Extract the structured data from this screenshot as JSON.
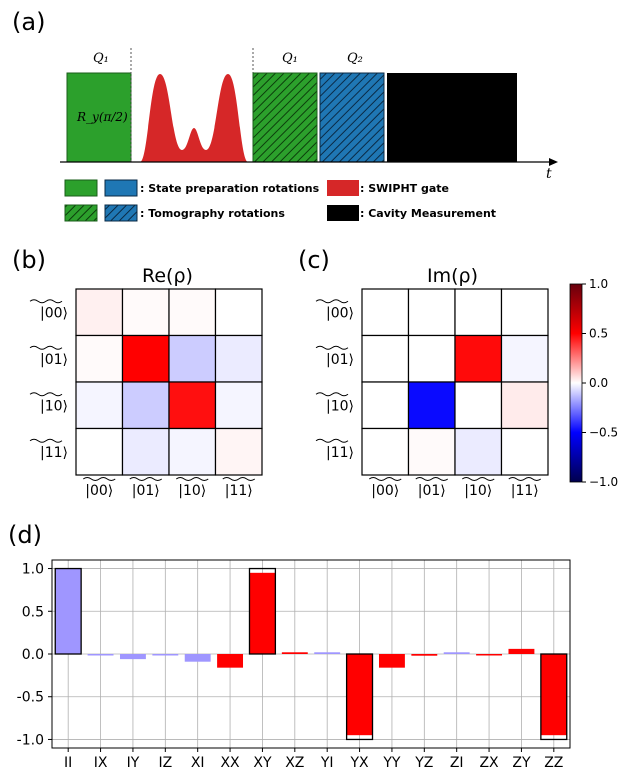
{
  "panel_labels": {
    "a": "(a)",
    "b": "(b)",
    "c": "(c)",
    "d": "(d)"
  },
  "timeline": {
    "q1_label_1": "Q₁",
    "q1_label_2": "Q₁",
    "q2_label": "Q₂",
    "gate_label": "R_y(π/2)",
    "time_axis_label": "t",
    "colors": {
      "green": "#2ca02c",
      "blue": "#1f77b4",
      "red": "#d62728",
      "black": "#000000"
    }
  },
  "legend": {
    "state_prep": ": State preparation rotations",
    "tomography": ": Tomography rotations",
    "swipht": ": SWIPHT gate",
    "cavity": ": Cavity Measurement"
  },
  "chart_data": [
    {
      "type": "heatmap",
      "title": "Re(ρ)",
      "row_labels": [
        "|00⟩",
        "|01⟩",
        "|10⟩",
        "|11⟩"
      ],
      "col_labels": [
        "|00⟩",
        "|01⟩",
        "|10⟩",
        "|11⟩"
      ],
      "values": [
        [
          0.03,
          0.01,
          0.01,
          0.0
        ],
        [
          0.01,
          0.5,
          -0.1,
          -0.04
        ],
        [
          -0.02,
          -0.1,
          0.47,
          -0.02
        ],
        [
          0.0,
          -0.04,
          -0.02,
          0.02
        ]
      ],
      "vmin": -1,
      "vmax": 1
    },
    {
      "type": "heatmap",
      "title": "Im(ρ)",
      "row_labels": [
        "|00⟩",
        "|01⟩",
        "|10⟩",
        "|11⟩"
      ],
      "col_labels": [
        "|00⟩",
        "|01⟩",
        "|10⟩",
        "|11⟩"
      ],
      "values": [
        [
          0.0,
          0.0,
          0.0,
          0.0
        ],
        [
          0.0,
          0.0,
          0.48,
          -0.02
        ],
        [
          0.0,
          -0.48,
          0.0,
          0.04
        ],
        [
          0.0,
          0.01,
          -0.04,
          0.0
        ]
      ],
      "vmin": -1,
      "vmax": 1,
      "colorbar_ticks": [
        "1.0",
        "0.5",
        "0.0",
        "−0.5",
        "−1.0"
      ]
    },
    {
      "type": "bar",
      "categories": [
        "II",
        "IX",
        "IY",
        "IZ",
        "XI",
        "XX",
        "XY",
        "XZ",
        "YI",
        "YX",
        "YY",
        "YZ",
        "ZI",
        "ZX",
        "ZY",
        "ZZ"
      ],
      "series": [
        {
          "values": [
            1.0,
            -0.01,
            -0.06,
            -0.01,
            -0.09,
            -0.16,
            0.95,
            0.02,
            0.02,
            -0.95,
            -0.16,
            -0.02,
            0.02,
            -0.01,
            0.06,
            -0.95
          ]
        },
        {
          "values": [
            1.0,
            0,
            0,
            0,
            0,
            0,
            1.0,
            0,
            0,
            -1.0,
            0,
            0,
            0,
            0,
            0,
            -1.0
          ]
        }
      ],
      "ylim": [
        -1.1,
        1.1
      ],
      "yticks": [
        "1.0",
        "0.5",
        "0.0",
        "-0.5",
        "-1.0"
      ],
      "grid": true
    }
  ]
}
